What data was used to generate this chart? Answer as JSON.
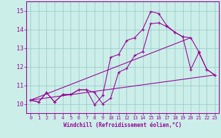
{
  "xlabel": "Windchill (Refroidissement éolien,°C)",
  "xlim": [
    -0.5,
    23.5
  ],
  "ylim": [
    9.5,
    15.5
  ],
  "yticks": [
    10,
    11,
    12,
    13,
    14,
    15
  ],
  "xticks": [
    0,
    1,
    2,
    3,
    4,
    5,
    6,
    7,
    8,
    9,
    10,
    11,
    12,
    13,
    14,
    15,
    16,
    17,
    18,
    19,
    20,
    21,
    22,
    23
  ],
  "bg_color": "#cceee8",
  "line_color": "#990099",
  "grid_color": "#99cccc",
  "line1_x": [
    0,
    1,
    2,
    3,
    4,
    5,
    6,
    7,
    8,
    9,
    10,
    11,
    12,
    13,
    14,
    15,
    16,
    17,
    18,
    19,
    20,
    21,
    22,
    23
  ],
  "line1_y": [
    10.2,
    10.1,
    10.6,
    10.1,
    10.5,
    10.5,
    10.75,
    10.75,
    10.6,
    10.0,
    10.3,
    11.7,
    11.9,
    12.6,
    12.8,
    14.3,
    14.35,
    14.15,
    13.85,
    13.6,
    13.55,
    12.8,
    11.85,
    11.55
  ],
  "line2_x": [
    0,
    1,
    2,
    3,
    4,
    5,
    6,
    7,
    8,
    9,
    10,
    11,
    12,
    13,
    14,
    15,
    16,
    17,
    18,
    19,
    20,
    21,
    22,
    23
  ],
  "line2_y": [
    10.2,
    10.1,
    10.6,
    10.1,
    10.5,
    10.5,
    10.75,
    10.75,
    9.95,
    10.45,
    12.5,
    12.65,
    13.4,
    13.55,
    14.0,
    14.95,
    14.85,
    14.2,
    13.85,
    13.6,
    11.85,
    12.75,
    11.85,
    11.55
  ],
  "line3_x": [
    0,
    23
  ],
  "line3_y": [
    10.2,
    11.55
  ],
  "line4_x": [
    0,
    20
  ],
  "line4_y": [
    10.2,
    13.55
  ]
}
